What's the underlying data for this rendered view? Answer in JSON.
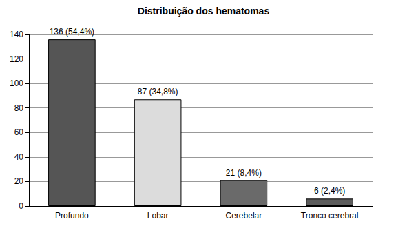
{
  "chart_data": {
    "type": "bar",
    "title": "Distribuição dos hematomas",
    "categories": [
      "Profundo",
      "Lobar",
      "Cerebelar",
      "Tronco cerebral"
    ],
    "values": [
      136,
      87,
      21,
      6
    ],
    "value_labels": [
      "136 (54,4%)",
      "87 (34,8%)",
      "21 (8,4%)",
      "6 (2,4%)"
    ],
    "colors": [
      "#555555",
      "#dcdcdc",
      "#6a6a6a",
      "#5c5c5c"
    ],
    "ylim": [
      0,
      140
    ],
    "yticks": [
      0,
      20,
      40,
      60,
      80,
      100,
      120,
      140
    ],
    "grid": true,
    "data_labels": true
  }
}
